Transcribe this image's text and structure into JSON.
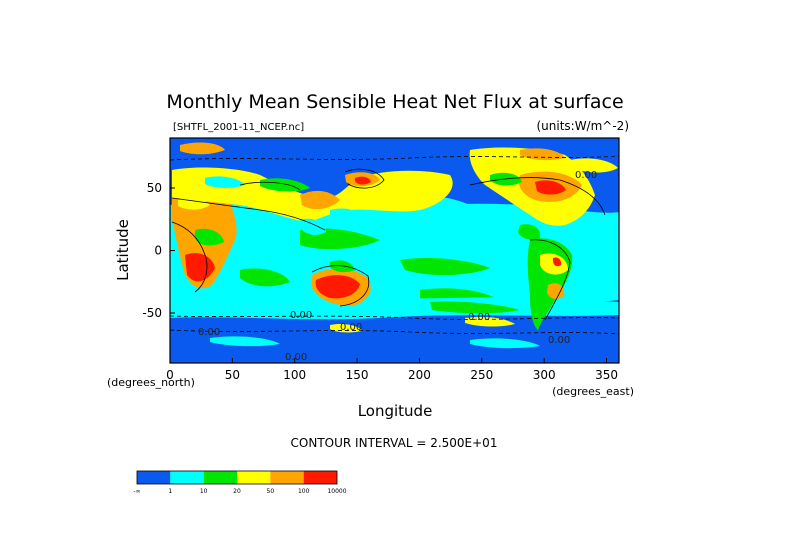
{
  "chart_data": {
    "type": "heatmap",
    "title": "Monthly Mean Sensible Heat Net Flux at surface",
    "file_label": "[SHTFL_2001-11_NCEP.nc]",
    "units_label": "(units:W/m^-2)",
    "xlabel": "Longitude",
    "ylabel": "Latitude",
    "x_unit_label": "(degrees_east)",
    "y_unit_label": "(degrees_north)",
    "xlim": [
      0,
      360
    ],
    "ylim": [
      -90,
      90
    ],
    "x_ticks": [
      0,
      50,
      100,
      150,
      200,
      250,
      300,
      350
    ],
    "y_ticks": [
      -50,
      0,
      50
    ],
    "contour_interval_text": "CONTOUR INTERVAL = 2.500E+01",
    "contour_labels": [
      "0.00",
      "0.00",
      "0.00",
      "0.00",
      "0.00",
      "0.00",
      "0.00"
    ],
    "colorbar": {
      "labels": [
        "-∞",
        "1",
        "10",
        "20",
        "50",
        "100",
        "10000"
      ],
      "colors": [
        "#0a5af0",
        "#00ffff",
        "#00e600",
        "#ffff00",
        "#ffa500",
        "#ff1a00"
      ]
    },
    "colors": {
      "ocean_low": "#0a5af0",
      "ocean_mid": "#00ffff",
      "land_mid": "#00e600",
      "yellow": "#ffff00",
      "orange": "#ffa500",
      "red": "#ff1a00",
      "frame": "#000000"
    }
  }
}
